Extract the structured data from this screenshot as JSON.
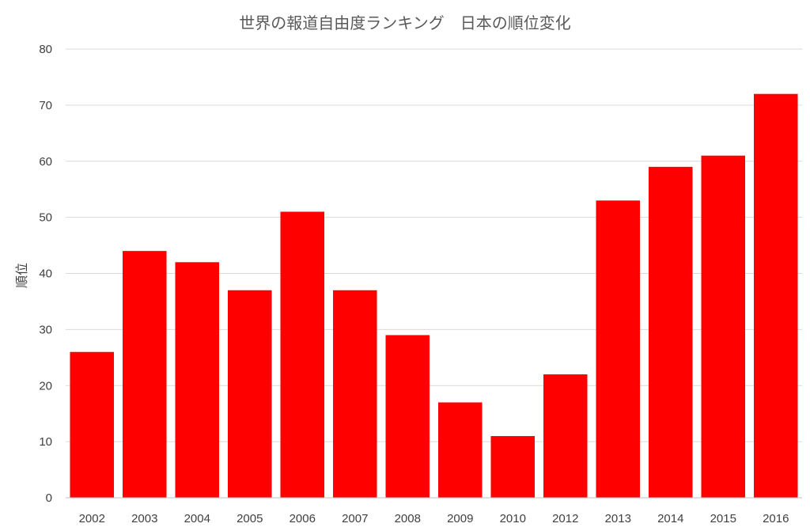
{
  "chart_data": {
    "type": "bar",
    "title": "世界の報道自由度ランキング　日本の順位変化",
    "xlabel": "",
    "ylabel": "順位",
    "categories": [
      "2002",
      "2003",
      "2004",
      "2005",
      "2006",
      "2007",
      "2008",
      "2009",
      "2010",
      "2012",
      "2013",
      "2014",
      "2015",
      "2016"
    ],
    "values": [
      26,
      44,
      42,
      37,
      51,
      37,
      29,
      17,
      11,
      22,
      53,
      59,
      61,
      72
    ],
    "ylim": [
      0,
      80
    ],
    "yticks": [
      "0",
      "10",
      "20",
      "30",
      "40",
      "50",
      "60",
      "70",
      "80"
    ],
    "grid": true,
    "legend": "none",
    "bar_color": "#ff0000"
  }
}
